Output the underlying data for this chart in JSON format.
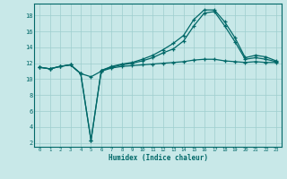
{
  "xlabel": "Humidex (Indice chaleur)",
  "bg_color": "#c8e8e8",
  "grid_color": "#9ecece",
  "line_color": "#006868",
  "xlim": [
    -0.5,
    23.5
  ],
  "ylim": [
    1.5,
    19.5
  ],
  "yticks": [
    2,
    4,
    6,
    8,
    10,
    12,
    14,
    16,
    18
  ],
  "xticks": [
    0,
    1,
    2,
    3,
    4,
    5,
    6,
    7,
    8,
    9,
    10,
    11,
    12,
    13,
    14,
    15,
    16,
    17,
    18,
    19,
    20,
    21,
    22,
    23
  ],
  "series": {
    "line1_x": [
      0,
      1,
      2,
      3,
      4,
      5,
      6,
      7,
      8,
      9,
      10,
      11,
      12,
      13,
      14,
      15,
      16,
      17,
      18,
      19,
      20,
      21,
      22,
      23
    ],
    "line1_y": [
      11.5,
      11.3,
      11.6,
      11.8,
      10.7,
      10.3,
      11.0,
      11.4,
      11.6,
      11.7,
      11.8,
      11.9,
      12.0,
      12.1,
      12.2,
      12.4,
      12.5,
      12.5,
      12.3,
      12.2,
      12.1,
      12.2,
      12.1,
      12.1
    ],
    "line2_x": [
      0,
      1,
      2,
      3,
      4,
      5,
      6,
      7,
      8,
      9,
      10,
      11,
      12,
      13,
      14,
      15,
      16,
      17,
      18,
      19,
      20,
      21,
      22,
      23
    ],
    "line2_y": [
      11.5,
      11.3,
      11.6,
      11.8,
      10.7,
      2.3,
      11.1,
      11.5,
      11.8,
      12.0,
      12.3,
      12.7,
      13.3,
      13.8,
      14.8,
      16.7,
      18.3,
      18.5,
      16.7,
      14.7,
      12.5,
      12.7,
      12.5,
      12.2
    ],
    "line3_x": [
      0,
      1,
      2,
      3,
      4,
      5,
      6,
      7,
      8,
      9,
      10,
      11,
      12,
      13,
      14,
      15,
      16,
      17,
      18,
      19,
      20,
      21,
      22,
      23
    ],
    "line3_y": [
      11.5,
      11.3,
      11.6,
      11.8,
      10.7,
      2.3,
      11.1,
      11.6,
      11.9,
      12.1,
      12.5,
      13.0,
      13.7,
      14.5,
      15.5,
      17.5,
      18.7,
      18.7,
      17.2,
      15.2,
      12.7,
      13.0,
      12.8,
      12.3
    ]
  }
}
